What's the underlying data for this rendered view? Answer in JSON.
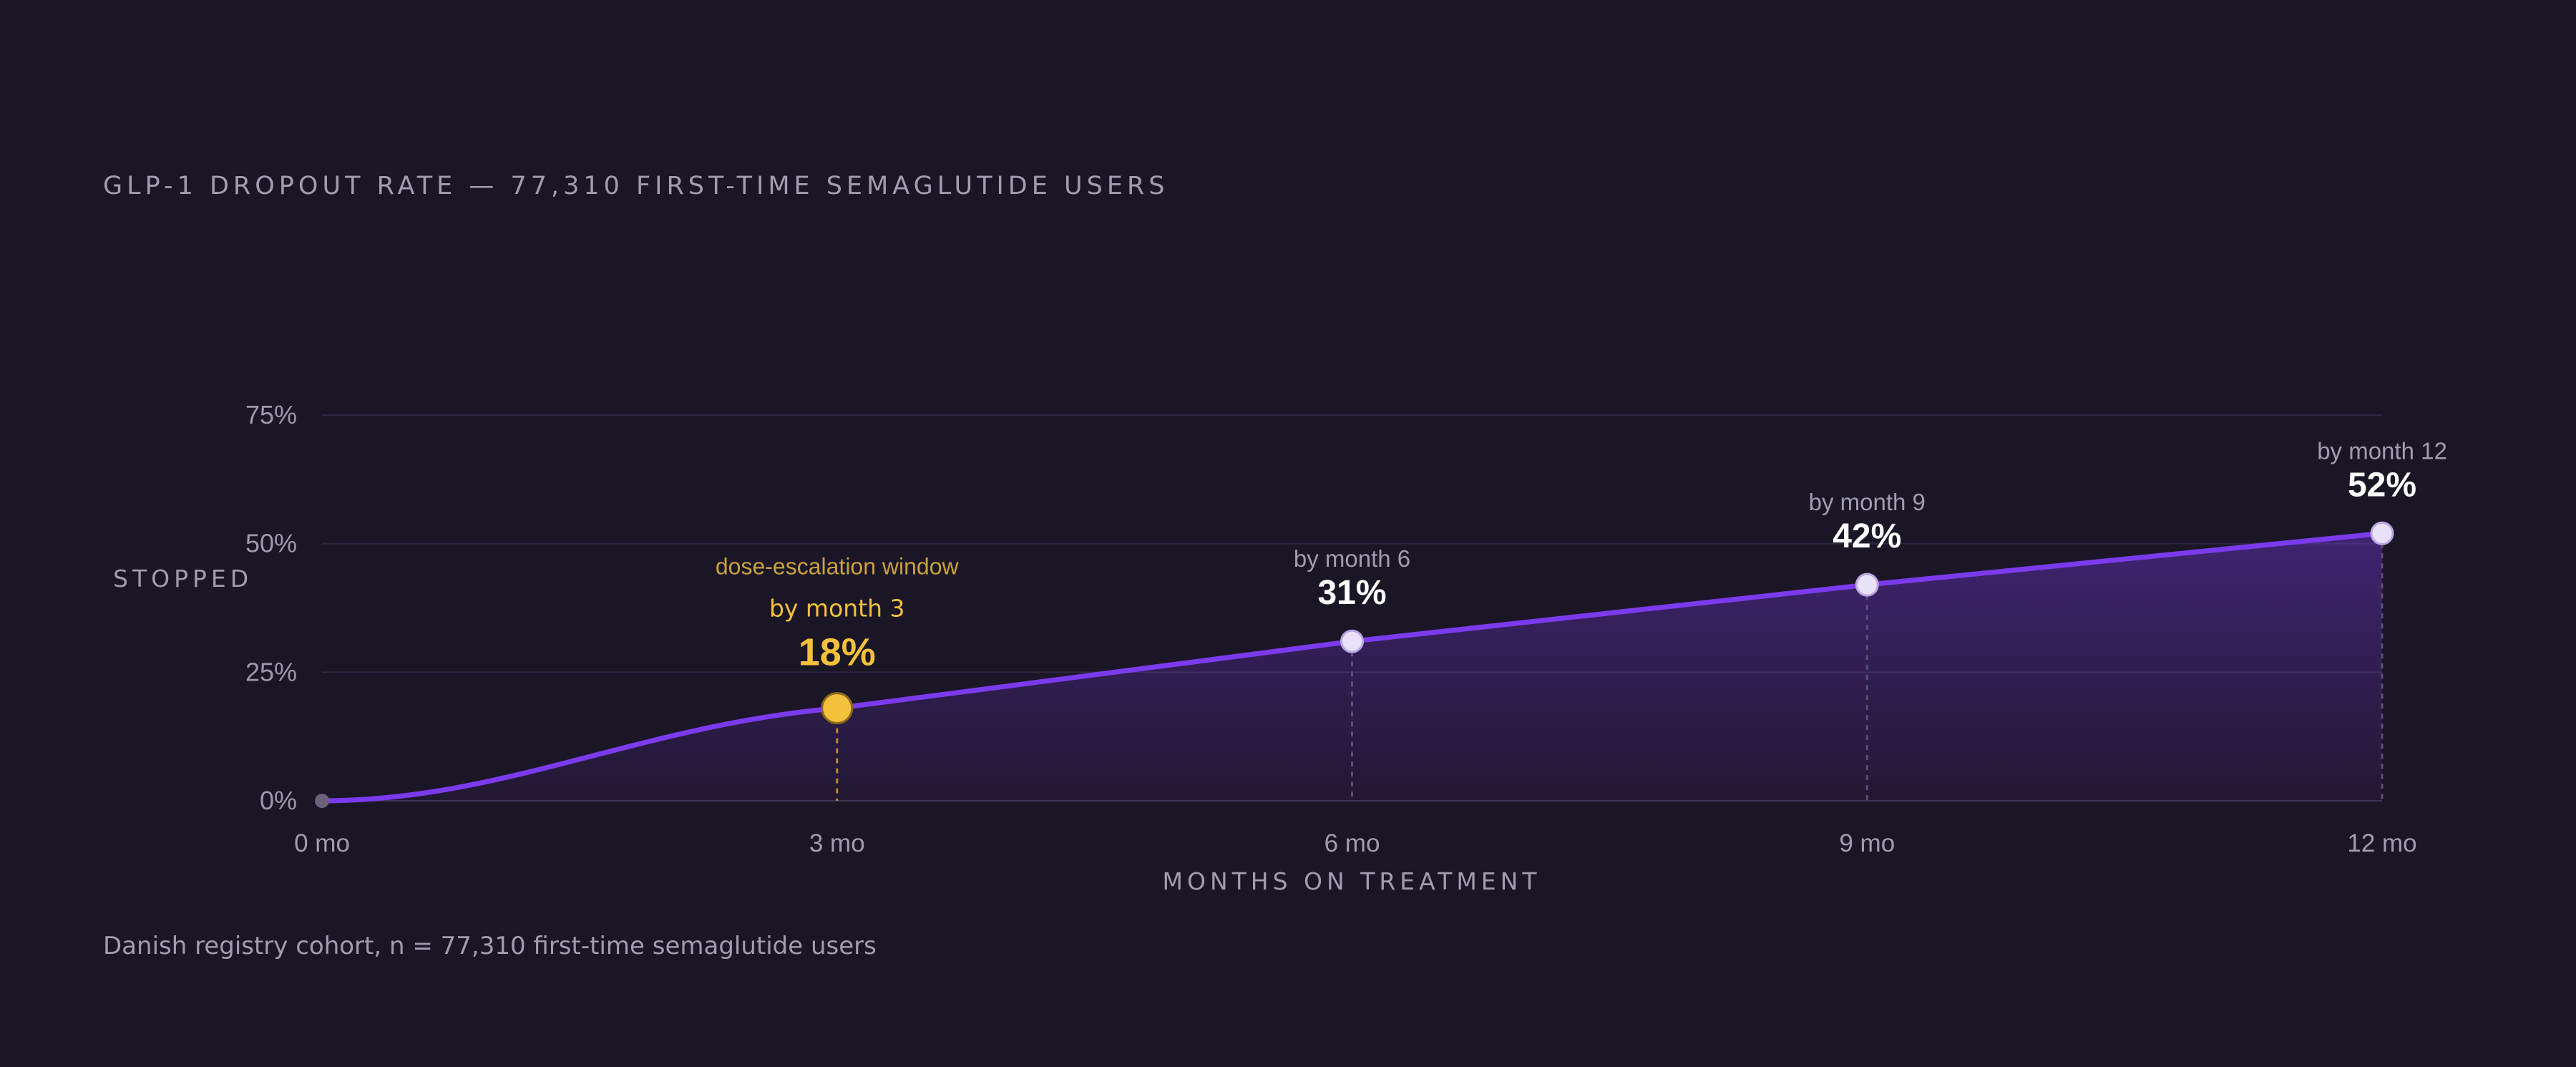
{
  "title": "GLP-1 DROPOUT RATE — 77,310 FIRST-TIME SEMAGLUTIDE USERS",
  "footnote": "Danish registry cohort, n = 77,310 first-time semaglutide users",
  "colors": {
    "line": "#7c3aed",
    "highlight": "#f3c13c",
    "point": "#e9e1f7",
    "background": "#1b1626"
  },
  "chart_data": {
    "type": "area",
    "title": "GLP-1 DROPOUT RATE — 77,310 FIRST-TIME SEMAGLUTIDE USERS",
    "xlabel": "MONTHS ON TREATMENT",
    "ylabel": "STOPPED",
    "xlim": [
      0,
      12
    ],
    "ylim": [
      0,
      75
    ],
    "x_ticks": [
      0,
      3,
      6,
      9,
      12
    ],
    "x_tick_labels": [
      "0 mo",
      "3 mo",
      "6 mo",
      "9 mo",
      "12 mo"
    ],
    "y_ticks": [
      0,
      25,
      50,
      75
    ],
    "y_tick_labels": [
      "0%",
      "25%",
      "50%",
      "75%"
    ],
    "grid": true,
    "x": [
      0,
      3,
      6,
      9,
      12
    ],
    "values": [
      0,
      18,
      31,
      42,
      52
    ],
    "annotations": [
      {
        "x": 3,
        "y": 18,
        "caption": "by month 3",
        "value_label": "18%",
        "note": "dose-escalation window",
        "highlight": true
      },
      {
        "x": 6,
        "y": 31,
        "caption": "by month 6",
        "value_label": "31%"
      },
      {
        "x": 9,
        "y": 42,
        "caption": "by month 9",
        "value_label": "42%"
      },
      {
        "x": 12,
        "y": 52,
        "caption": "by month 12",
        "value_label": "52%"
      }
    ]
  }
}
